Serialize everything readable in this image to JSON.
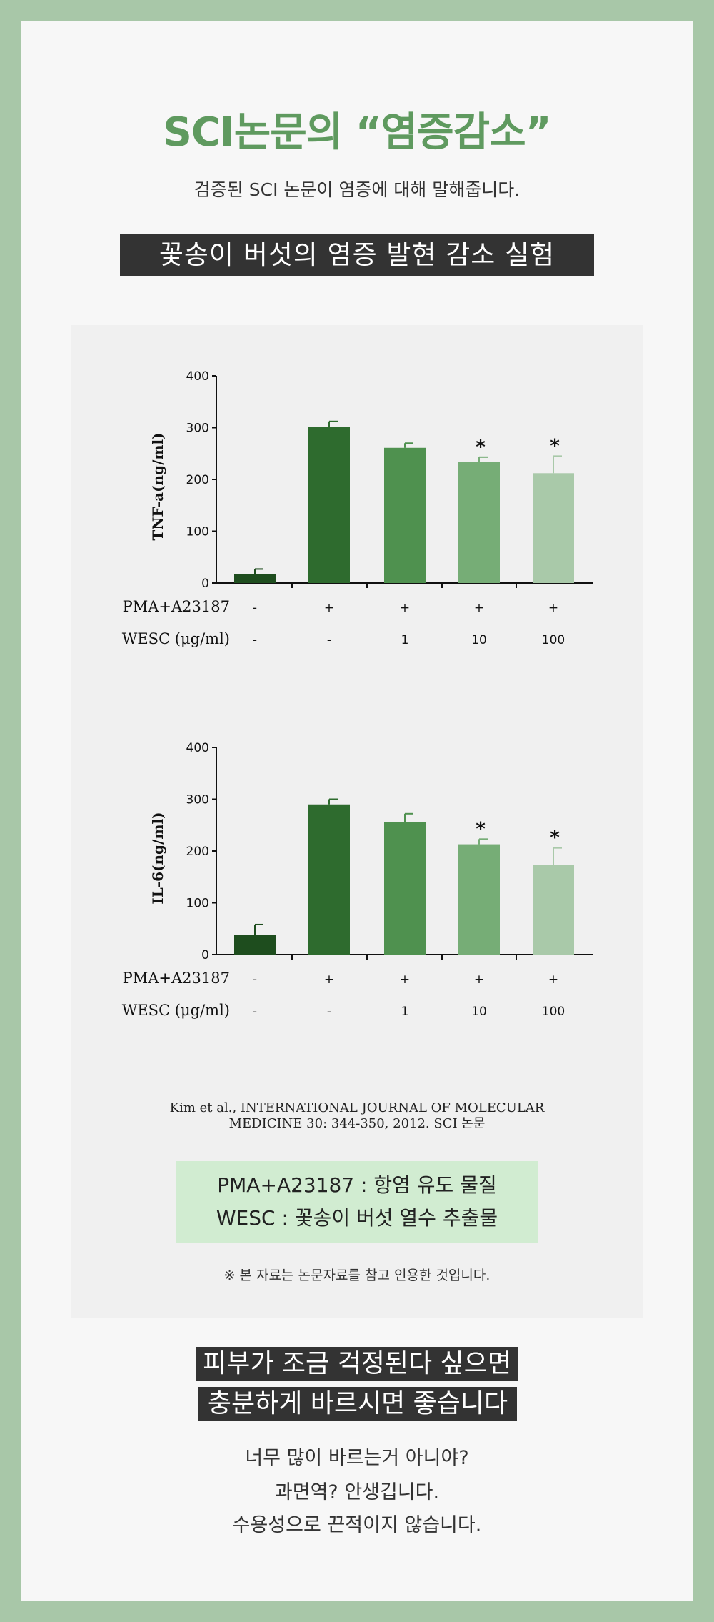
{
  "heading": {
    "title": "SCI논문의 “염증감소”",
    "subtitle": "검증된 SCI 논문이 염증에 대해 말해줍니다.",
    "banner": "꽃송이 버섯의 염증 발현 감소 실험"
  },
  "colors": {
    "background": "#a8c7a8",
    "title_green": "#5f9a5f",
    "bar_control": "#1e4d1e",
    "bar_pma": "#2e6b2e",
    "bar_wesc1": "#4f914f",
    "bar_wesc10": "#76ad76",
    "bar_wesc100": "#a9c9a9",
    "legend_box": "#d1ecd1"
  },
  "chart_data": [
    {
      "type": "bar",
      "ylabel": "TNF-a(ng/ml)",
      "ylim": [
        0,
        400
      ],
      "yticks": [
        "0",
        "100",
        "200",
        "300",
        "400"
      ],
      "row_labels": [
        "PMA+A23187",
        "WESC (μg/ml)"
      ],
      "rows": [
        [
          "-",
          "+",
          "+",
          "+",
          "+"
        ],
        [
          "-",
          "-",
          "1",
          "10",
          "100"
        ]
      ],
      "values": [
        17,
        302,
        261,
        234,
        212
      ],
      "errors": [
        10,
        10,
        9,
        9,
        33
      ],
      "significant": [
        "",
        "",
        "",
        "*",
        "*"
      ]
    },
    {
      "type": "bar",
      "ylabel": "IL-6(ng/ml)",
      "ylim": [
        0,
        400
      ],
      "yticks": [
        "0",
        "100",
        "200",
        "300",
        "400"
      ],
      "row_labels": [
        "PMA+A23187",
        "WESC (μg/ml)"
      ],
      "rows": [
        [
          "-",
          "+",
          "+",
          "+",
          "+"
        ],
        [
          "-",
          "-",
          "1",
          "10",
          "100"
        ]
      ],
      "values": [
        38,
        290,
        256,
        213,
        173
      ],
      "errors": [
        20,
        10,
        16,
        10,
        33
      ],
      "significant": [
        "",
        "",
        "",
        "*",
        "*"
      ]
    }
  ],
  "citation": {
    "line1": "Kim et al., INTERNATIONAL JOURNAL OF MOLECULAR",
    "line2": "MEDICINE 30: 344-350, 2012. SCI 논문"
  },
  "legend": {
    "line1": "PMA+A23187 : 항염 유도 물질",
    "line2": "WESC :  꽃송이 버섯 열수 추출물"
  },
  "note": "※ 본 자료는 논문자료를 참고 인용한 것입니다.",
  "closing": {
    "tag1": "피부가 조금 걱정된다 싶으면",
    "tag2": "충분하게 바르시면 좋습니다",
    "line1": "너무 많이 바르는거 아니야?",
    "line2": "과면역? 안생깁니다.",
    "line3": "수용성으로 끈적이지 않습니다."
  }
}
